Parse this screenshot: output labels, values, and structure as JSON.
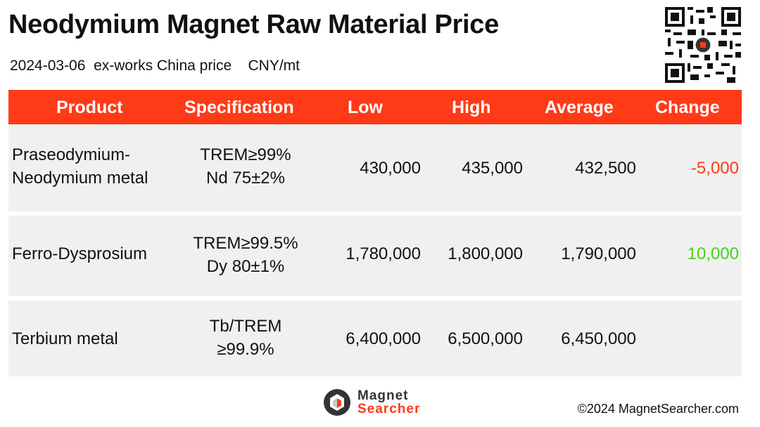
{
  "header": {
    "title": "Neodymium Magnet Raw Material Price",
    "subtitle": "2024-03-06  ex-works China price    CNY/mt"
  },
  "table": {
    "columns": [
      "Product",
      "Specification",
      "Low",
      "High",
      "Average",
      "Change"
    ],
    "rows": [
      {
        "product_line1": "Praseodymium-",
        "product_line2": "Neodymium metal",
        "spec_line1": "TREM≥99%",
        "spec_line2": "Nd 75±2%",
        "low": "430,000",
        "high": "435,000",
        "average": "432,500",
        "change": "-5,000"
      },
      {
        "product": "Ferro-Dysprosium",
        "spec_line1": "TREM≥99.5%",
        "spec_line2": "Dy 80±1%",
        "low": "1,780,000",
        "high": "1,800,000",
        "average": "1,790,000",
        "change": "10,000"
      },
      {
        "product": "Terbium metal",
        "spec_line1": "Tb/TREM",
        "spec_line2": "≥99.9%",
        "low": "6,400,000",
        "high": "6,500,000",
        "average": "6,450,000",
        "change": ""
      }
    ]
  },
  "footer": {
    "logo_line1": "Magnet",
    "logo_line2": "Searcher",
    "copyright": "©2024 MagnetSearcher.com"
  },
  "colors": {
    "accent": "#ff3a17",
    "negative": "#ff3a17",
    "positive": "#44d41c",
    "row_bg": "#f0f0f0"
  },
  "icons": [
    "qr-code-icon",
    "magnet-searcher-logo-icon"
  ]
}
